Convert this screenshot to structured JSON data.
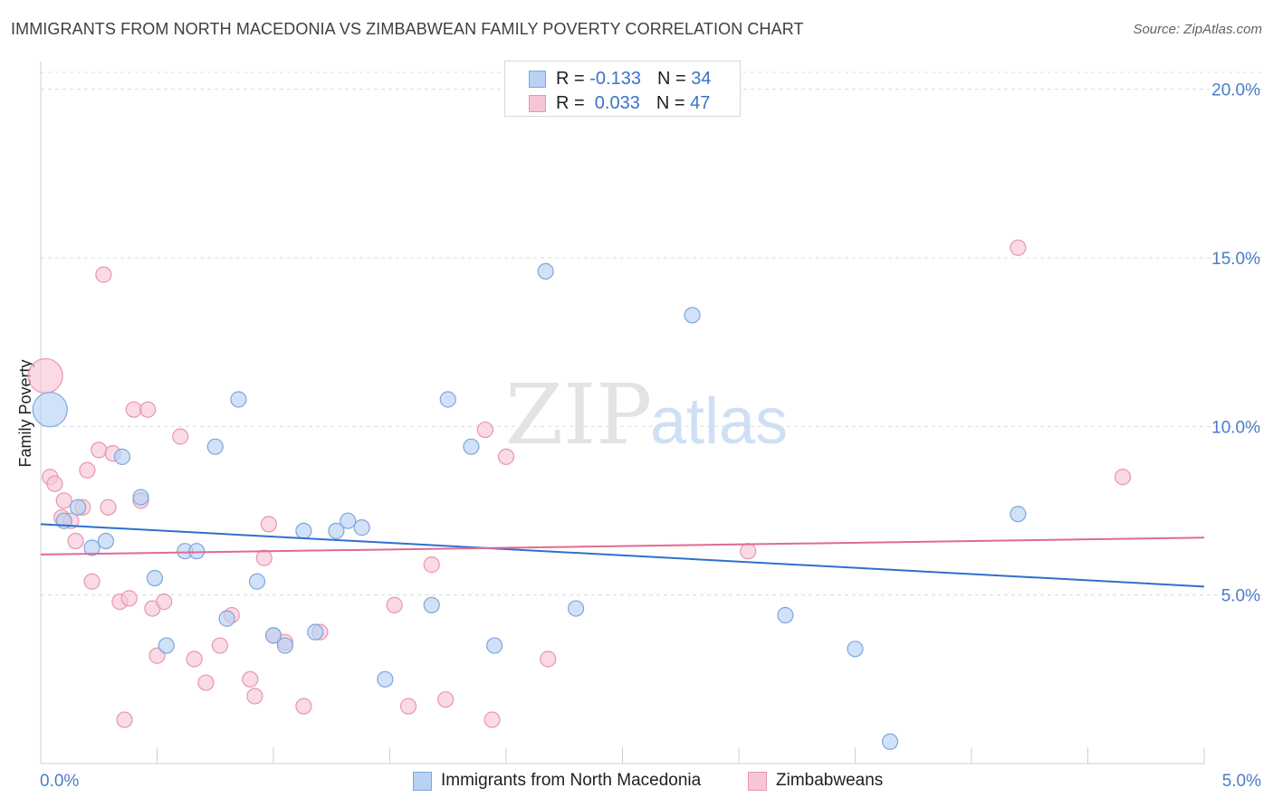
{
  "title": "IMMIGRANTS FROM NORTH MACEDONIA VS ZIMBABWEAN FAMILY POVERTY CORRELATION CHART",
  "source": "Source: ZipAtlas.com",
  "watermark": {
    "zip": "ZIP",
    "atlas": "atlas"
  },
  "colors": {
    "blue_fill": "#b9d1f3",
    "blue_stroke": "#7ea6dd",
    "blue_line": "#2f6fce",
    "pink_fill": "#f7c6d5",
    "pink_stroke": "#e995b0",
    "pink_line": "#e06a93",
    "tick_text": "#4a7cc9"
  },
  "legend": {
    "rows": [
      {
        "r_label": "R =",
        "r_value": "-0.133",
        "n_label": "N =",
        "n_value": "34"
      },
      {
        "r_label": "R =",
        "r_value": " 0.033",
        "n_label": "N =",
        "n_value": "47"
      }
    ],
    "bottom": [
      "Immigrants from North Macedonia",
      "Zimbabweans"
    ]
  },
  "chart_data": {
    "type": "scatter",
    "title": "IMMIGRANTS FROM NORTH MACEDONIA VS ZIMBABWEAN FAMILY POVERTY CORRELATION CHART",
    "xlabel": "",
    "ylabel": "Family Poverty",
    "xlim": [
      0,
      5
    ],
    "ylim": [
      0,
      20.5
    ],
    "x_tick_labels": [
      "0.0%",
      "5.0%"
    ],
    "y_ticks": [
      5,
      10,
      15,
      20
    ],
    "y_tick_labels": [
      "5.0%",
      "10.0%",
      "15.0%",
      "20.0%"
    ],
    "series": [
      {
        "name": "Immigrants from North Macedonia",
        "color": "blue",
        "trend": {
          "x": [
            0,
            5
          ],
          "y": [
            7.1,
            5.25
          ]
        },
        "points": [
          {
            "x": 0.04,
            "y": 10.5,
            "size": "large"
          },
          {
            "x": 0.1,
            "y": 7.2
          },
          {
            "x": 0.16,
            "y": 7.6
          },
          {
            "x": 0.22,
            "y": 6.4
          },
          {
            "x": 0.28,
            "y": 6.6
          },
          {
            "x": 0.35,
            "y": 9.1
          },
          {
            "x": 0.43,
            "y": 7.9
          },
          {
            "x": 0.49,
            "y": 5.5
          },
          {
            "x": 0.54,
            "y": 3.5
          },
          {
            "x": 0.62,
            "y": 6.3
          },
          {
            "x": 0.67,
            "y": 6.3
          },
          {
            "x": 0.75,
            "y": 9.4
          },
          {
            "x": 0.8,
            "y": 4.3
          },
          {
            "x": 0.85,
            "y": 10.8
          },
          {
            "x": 0.93,
            "y": 5.4
          },
          {
            "x": 1.0,
            "y": 3.8
          },
          {
            "x": 1.05,
            "y": 3.5
          },
          {
            "x": 1.13,
            "y": 6.9
          },
          {
            "x": 1.18,
            "y": 3.9
          },
          {
            "x": 1.27,
            "y": 6.9
          },
          {
            "x": 1.32,
            "y": 7.2
          },
          {
            "x": 1.38,
            "y": 7.0
          },
          {
            "x": 1.48,
            "y": 2.5
          },
          {
            "x": 1.68,
            "y": 4.7
          },
          {
            "x": 1.75,
            "y": 10.8
          },
          {
            "x": 1.85,
            "y": 9.4
          },
          {
            "x": 1.95,
            "y": 3.5
          },
          {
            "x": 2.17,
            "y": 14.6
          },
          {
            "x": 2.3,
            "y": 4.6
          },
          {
            "x": 2.8,
            "y": 13.3
          },
          {
            "x": 3.2,
            "y": 4.4
          },
          {
            "x": 3.5,
            "y": 3.4
          },
          {
            "x": 3.65,
            "y": 0.65
          },
          {
            "x": 4.2,
            "y": 7.4
          }
        ]
      },
      {
        "name": "Zimbabweans",
        "color": "pink",
        "trend": {
          "x": [
            0,
            5
          ],
          "y": [
            6.2,
            6.7
          ]
        },
        "points": [
          {
            "x": 0.02,
            "y": 11.5,
            "size": "large"
          },
          {
            "x": 0.04,
            "y": 8.5
          },
          {
            "x": 0.06,
            "y": 8.3
          },
          {
            "x": 0.09,
            "y": 7.3
          },
          {
            "x": 0.1,
            "y": 7.8
          },
          {
            "x": 0.13,
            "y": 7.2
          },
          {
            "x": 0.15,
            "y": 6.6
          },
          {
            "x": 0.18,
            "y": 7.6
          },
          {
            "x": 0.2,
            "y": 8.7
          },
          {
            "x": 0.22,
            "y": 5.4
          },
          {
            "x": 0.25,
            "y": 9.3
          },
          {
            "x": 0.27,
            "y": 14.5
          },
          {
            "x": 0.29,
            "y": 7.6
          },
          {
            "x": 0.31,
            "y": 9.2
          },
          {
            "x": 0.34,
            "y": 4.8
          },
          {
            "x": 0.36,
            "y": 1.3
          },
          {
            "x": 0.38,
            "y": 4.9
          },
          {
            "x": 0.4,
            "y": 10.5
          },
          {
            "x": 0.43,
            "y": 7.8
          },
          {
            "x": 0.46,
            "y": 10.5
          },
          {
            "x": 0.48,
            "y": 4.6
          },
          {
            "x": 0.5,
            "y": 3.2
          },
          {
            "x": 0.53,
            "y": 4.8
          },
          {
            "x": 0.6,
            "y": 9.7
          },
          {
            "x": 0.66,
            "y": 3.1
          },
          {
            "x": 0.71,
            "y": 2.4
          },
          {
            "x": 0.77,
            "y": 3.5
          },
          {
            "x": 0.82,
            "y": 4.4
          },
          {
            "x": 0.9,
            "y": 2.5
          },
          {
            "x": 0.92,
            "y": 2.0
          },
          {
            "x": 0.96,
            "y": 6.1
          },
          {
            "x": 0.98,
            "y": 7.1
          },
          {
            "x": 1.0,
            "y": 3.8
          },
          {
            "x": 1.05,
            "y": 3.6
          },
          {
            "x": 1.13,
            "y": 1.7
          },
          {
            "x": 1.2,
            "y": 3.9
          },
          {
            "x": 1.52,
            "y": 4.7
          },
          {
            "x": 1.58,
            "y": 1.7
          },
          {
            "x": 1.68,
            "y": 5.9
          },
          {
            "x": 1.74,
            "y": 1.9
          },
          {
            "x": 1.91,
            "y": 9.9
          },
          {
            "x": 1.94,
            "y": 1.3
          },
          {
            "x": 2.0,
            "y": 9.1
          },
          {
            "x": 2.18,
            "y": 3.1
          },
          {
            "x": 3.04,
            "y": 6.3
          },
          {
            "x": 4.2,
            "y": 15.3
          },
          {
            "x": 4.65,
            "y": 8.5
          }
        ]
      }
    ]
  }
}
